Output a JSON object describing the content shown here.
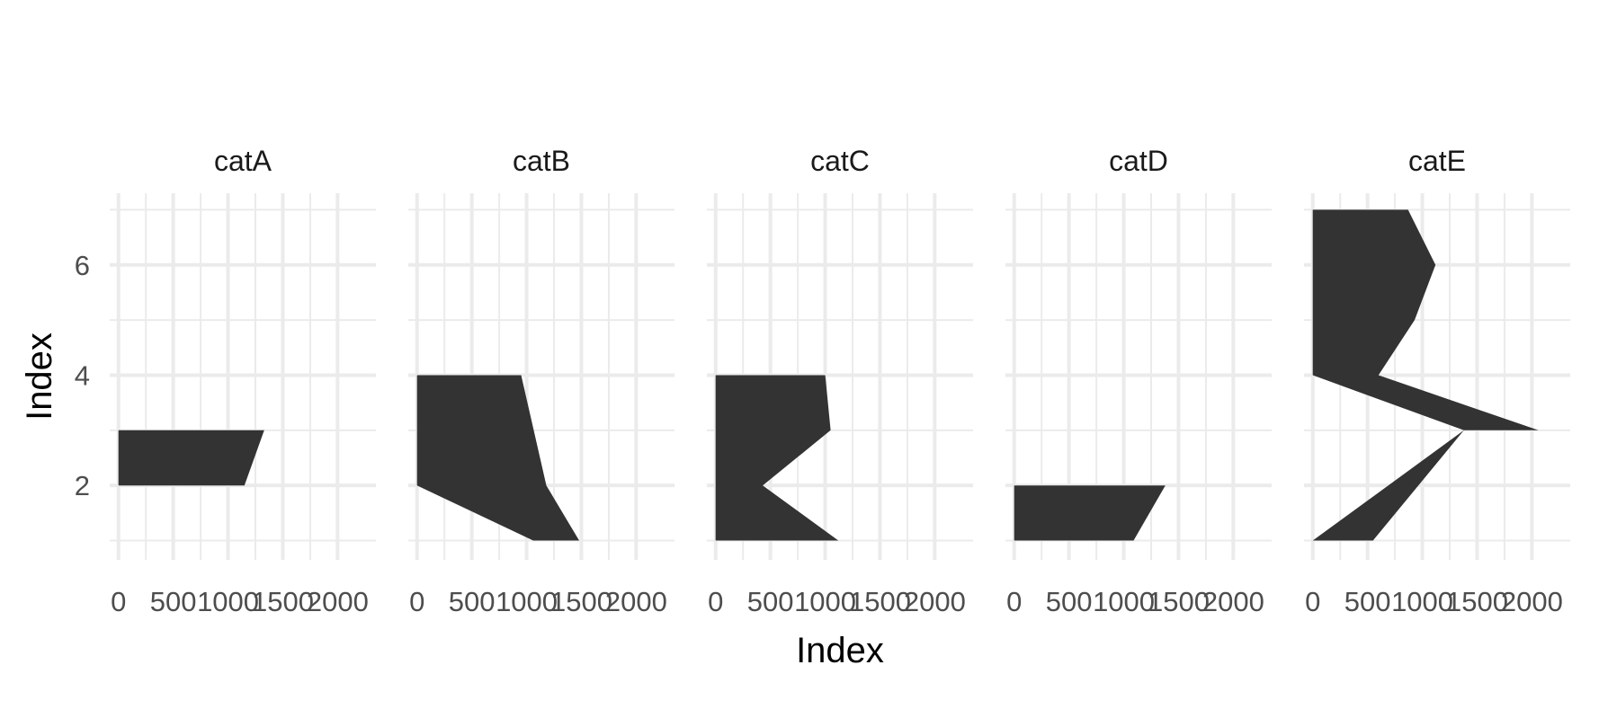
{
  "chart_data": {
    "type": "area",
    "orientation": "horizontal",
    "xlabel": "Index",
    "ylabel": "Index",
    "xlim": [
      -80,
      2350
    ],
    "ylim": [
      0.65,
      7.3
    ],
    "x_ticks": [
      0,
      500,
      1000,
      1500,
      2000
    ],
    "x_tick_labels": [
      "0",
      "500",
      "1000",
      "1500",
      "2000"
    ],
    "y_ticks": [
      2,
      4,
      6
    ],
    "y_tick_labels": [
      "2",
      "4",
      "6"
    ],
    "grid": true,
    "fill_color": "#333333",
    "grid_color": "#ebebeb",
    "facets": [
      {
        "name": "catA",
        "points": [
          [
            0,
            2
          ],
          [
            1150,
            2
          ],
          [
            1330,
            3
          ],
          [
            0,
            3
          ]
        ]
      },
      {
        "name": "catB",
        "points": [
          [
            0,
            2
          ],
          [
            1060,
            1
          ],
          [
            1480,
            1
          ],
          [
            1180,
            2
          ],
          [
            950,
            4
          ],
          [
            0,
            4
          ]
        ]
      },
      {
        "name": "catC",
        "points": [
          [
            0,
            1
          ],
          [
            1120,
            1
          ],
          [
            430,
            2
          ],
          [
            1050,
            3
          ],
          [
            1000,
            4
          ],
          [
            0,
            4
          ]
        ]
      },
      {
        "name": "catD",
        "points": [
          [
            0,
            1
          ],
          [
            1090,
            1
          ],
          [
            1380,
            2
          ],
          [
            0,
            2
          ]
        ]
      },
      {
        "name": "catE",
        "points": [
          [
            0,
            1
          ],
          [
            550,
            1
          ],
          [
            1380,
            3
          ],
          [
            0,
            3
          ],
          [
            1380,
            3
          ],
          [
            2060,
            3
          ],
          [
            600,
            4
          ],
          [
            930,
            5
          ],
          [
            1120,
            6
          ],
          [
            870,
            7
          ],
          [
            0,
            7
          ],
          [
            0,
            4
          ],
          [
            1380,
            3
          ]
        ]
      }
    ]
  }
}
